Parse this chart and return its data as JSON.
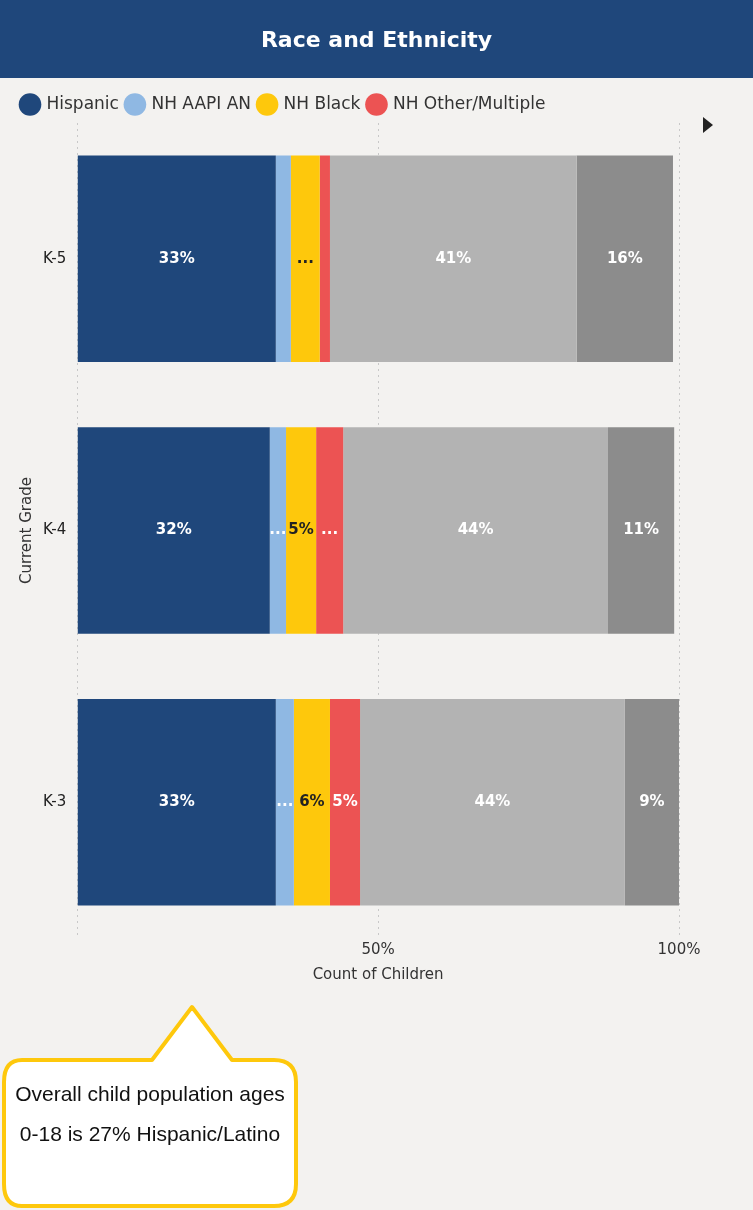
{
  "chart_data": {
    "type": "bar",
    "title": "Race and Ethnicity",
    "orientation": "horizontal",
    "stacked": true,
    "categories": [
      "K-5",
      "K-4",
      "K-3"
    ],
    "series": [
      {
        "name": "Hispanic",
        "color": "#1f477b",
        "values": [
          33,
          32,
          33
        ],
        "value_labels": [
          "33%",
          "32%",
          "33%"
        ]
      },
      {
        "name": "NH AAPI AN",
        "color": "#8fb8e3",
        "values": [
          2.5,
          2.7,
          3
        ],
        "value_labels": [
          null,
          "...",
          "..."
        ]
      },
      {
        "name": "NH Black",
        "color": "#fec80c",
        "values": [
          4.8,
          5,
          6
        ],
        "value_labels": [
          "...",
          "5%",
          "6%"
        ]
      },
      {
        "name": "NH Other/Multiple",
        "color": "#ec5353",
        "values": [
          1.7,
          4.5,
          5
        ],
        "value_labels": [
          null,
          "...",
          "5%"
        ]
      },
      {
        "color": "#b3b3b3",
        "values": [
          41,
          44,
          44
        ],
        "value_labels": [
          "41%",
          "44%",
          "44%"
        ]
      },
      {
        "color": "#8c8c8c",
        "values": [
          16,
          11,
          9
        ],
        "value_labels": [
          "16%",
          "11%",
          "9%"
        ]
      }
    ],
    "xlim": [
      0,
      100
    ],
    "xticks": [
      {
        "value": 0,
        "label": null
      },
      {
        "value": 50,
        "label": "50%"
      },
      {
        "value": 100,
        "label": "100%"
      }
    ],
    "xlabel": "Count of Children",
    "ylabel": "Current Grade",
    "grid": "x",
    "legend": "top left",
    "annotations": [
      "Overall child population ages 0-18 is 27% Hispanic/Latino"
    ]
  }
}
